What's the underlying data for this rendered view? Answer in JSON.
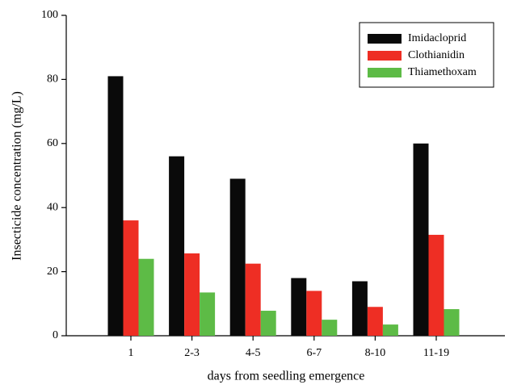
{
  "chart_data": {
    "type": "bar",
    "x_label": "days from seedling emergence",
    "y_label": "Insecticide concentration (mg/L)",
    "categories": [
      "1",
      "2-3",
      "4-5",
      "6-7",
      "8-10",
      "11-19"
    ],
    "series": [
      {
        "name": "Imidacloprid",
        "color": "#0a0a0a",
        "values": [
          81,
          56,
          49,
          18,
          17,
          60
        ]
      },
      {
        "name": "Clothianidin",
        "color": "#ee2e24",
        "values": [
          36,
          25.7,
          22.5,
          14,
          9,
          31.5
        ]
      },
      {
        "name": "Thiamethoxam",
        "color": "#5dbb46",
        "values": [
          24,
          13.5,
          7.8,
          5,
          3.5,
          8.3
        ]
      }
    ],
    "ylim": [
      0,
      100
    ],
    "yticks": [
      0,
      20,
      40,
      60,
      80,
      100
    ],
    "grid": false,
    "legend": "upper right"
  }
}
